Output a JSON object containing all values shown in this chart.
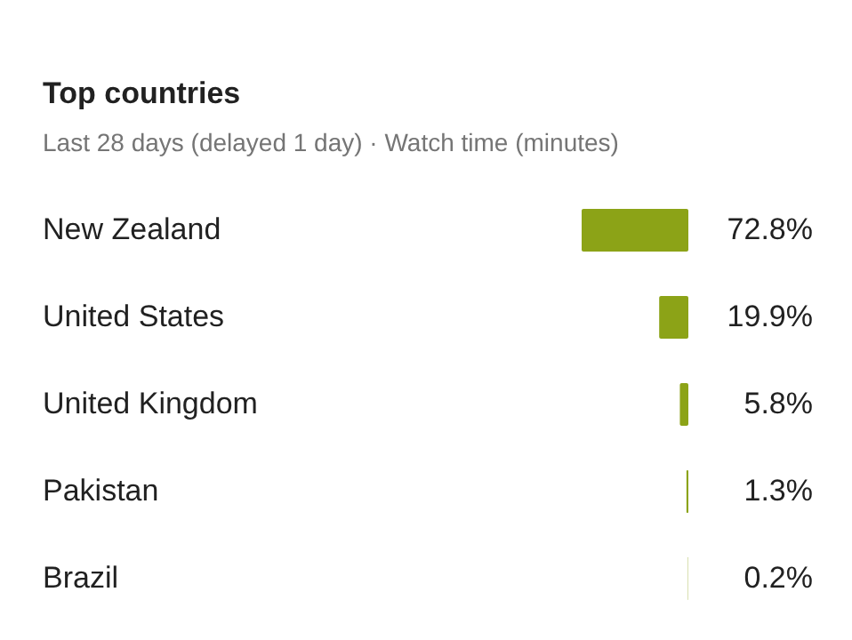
{
  "chart_data": {
    "type": "bar",
    "orientation": "horizontal",
    "title": "Top countries",
    "subtitle": "Last 28 days (delayed 1 day) · Watch time (minutes)",
    "categories": [
      "New Zealand",
      "United States",
      "United Kingdom",
      "Pakistan",
      "Brazil"
    ],
    "values": [
      72.8,
      19.9,
      5.8,
      1.3,
      0.2
    ],
    "value_labels": [
      "72.8%",
      "19.9%",
      "5.8%",
      "1.3%",
      "0.2%"
    ],
    "color": "#8ca317"
  }
}
